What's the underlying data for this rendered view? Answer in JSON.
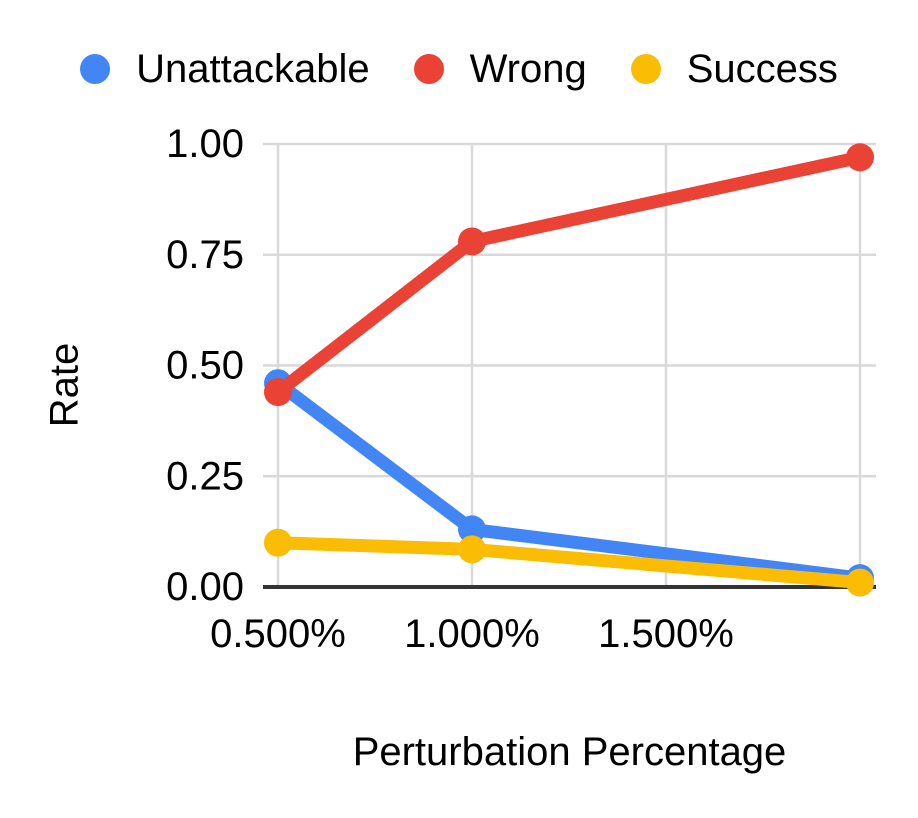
{
  "legend": {
    "items": [
      {
        "label": "Unattackable",
        "color": "#4285F4"
      },
      {
        "label": "Wrong",
        "color": "#EA4335"
      },
      {
        "label": "Success",
        "color": "#FBBC04"
      }
    ]
  },
  "axes": {
    "y_title": "Rate",
    "x_title": "Perturbation Percentage"
  },
  "colors": {
    "gridline": "#D9D9D9",
    "axis_line": "#333333",
    "text": "#000000",
    "background": "#FFFFFF"
  },
  "chart_data": {
    "type": "line",
    "title": "",
    "xlabel": "Perturbation Percentage",
    "ylabel": "Rate",
    "x": [
      0.5,
      1.0,
      2.0
    ],
    "x_unit": "percent",
    "series": [
      {
        "name": "Unattackable",
        "color": "#4285F4",
        "values": [
          0.46,
          0.13,
          0.02
        ]
      },
      {
        "name": "Wrong",
        "color": "#EA4335",
        "values": [
          0.44,
          0.78,
          0.97
        ]
      },
      {
        "name": "Success",
        "color": "#FBBC04",
        "values": [
          0.1,
          0.085,
          0.01
        ]
      }
    ],
    "ylim": [
      0,
      1
    ],
    "xlim": [
      0.5,
      2.0
    ],
    "yticks": [
      {
        "v": 0.0,
        "label": "0.00"
      },
      {
        "v": 0.25,
        "label": "0.25"
      },
      {
        "v": 0.5,
        "label": "0.50"
      },
      {
        "v": 0.75,
        "label": "0.75"
      },
      {
        "v": 1.0,
        "label": "1.00"
      }
    ],
    "xticks": [
      {
        "v": 0.5,
        "label": "0.500%"
      },
      {
        "v": 1.0,
        "label": "1.000%"
      },
      {
        "v": 1.5,
        "label": "1.500%"
      }
    ],
    "x_gridlines": [
      0.5,
      1.0,
      1.5,
      2.0
    ],
    "grid": true,
    "legend_position": "top"
  }
}
